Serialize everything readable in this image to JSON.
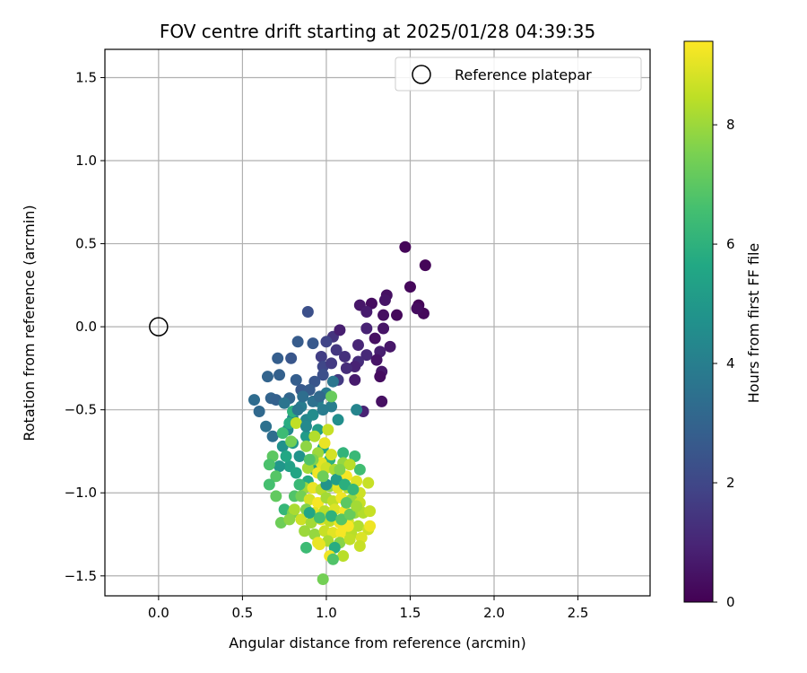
{
  "chart_data": {
    "type": "scatter",
    "title": "FOV centre drift starting at 2025/01/28 04:39:35",
    "xlabel": "Angular distance from reference (arcmin)",
    "ylabel": "Rotation from reference (arcmin)",
    "xlim": [
      -0.32,
      2.93
    ],
    "ylim": [
      -1.62,
      1.67
    ],
    "x_ticks": [
      0.0,
      0.5,
      1.0,
      1.5,
      2.0,
      2.5
    ],
    "x_tick_labels": [
      "0.0",
      "0.5",
      "1.0",
      "1.5",
      "2.0",
      "2.5"
    ],
    "y_ticks": [
      -1.5,
      -1.0,
      -0.5,
      0.0,
      0.5,
      1.0,
      1.5
    ],
    "y_tick_labels": [
      "−1.5",
      "−1.0",
      "−0.5",
      "0.0",
      "0.5",
      "1.0",
      "1.5"
    ],
    "grid": true,
    "legend": {
      "position": "top-right",
      "entries": [
        "Reference platepar"
      ]
    },
    "reference_point": {
      "x": 0.0,
      "y": 0.0
    },
    "colorbar": {
      "label": "Hours from first FF file",
      "colormap": "viridis",
      "range": [
        0,
        9.4
      ],
      "ticks": [
        0,
        2,
        4,
        6,
        8
      ],
      "tick_labels": [
        "0",
        "2",
        "4",
        "6",
        "8"
      ]
    },
    "points": [
      {
        "x": 1.47,
        "y": 0.48,
        "c": 0.1
      },
      {
        "x": 1.59,
        "y": 0.37,
        "c": 0.1
      },
      {
        "x": 1.5,
        "y": 0.24,
        "c": 0.2
      },
      {
        "x": 1.55,
        "y": 0.13,
        "c": 0.1
      },
      {
        "x": 1.58,
        "y": 0.08,
        "c": 0.2
      },
      {
        "x": 1.54,
        "y": 0.11,
        "c": 0.3
      },
      {
        "x": 1.36,
        "y": 0.19,
        "c": 0.4
      },
      {
        "x": 1.35,
        "y": 0.16,
        "c": 0.5
      },
      {
        "x": 1.27,
        "y": 0.14,
        "c": 0.3
      },
      {
        "x": 1.2,
        "y": 0.13,
        "c": 0.6
      },
      {
        "x": 1.42,
        "y": 0.07,
        "c": 0.2
      },
      {
        "x": 1.34,
        "y": 0.07,
        "c": 0.4
      },
      {
        "x": 1.24,
        "y": 0.09,
        "c": 0.7
      },
      {
        "x": 1.34,
        "y": -0.01,
        "c": 0.5
      },
      {
        "x": 1.24,
        "y": -0.01,
        "c": 0.9
      },
      {
        "x": 1.29,
        "y": -0.07,
        "c": 0.4
      },
      {
        "x": 1.38,
        "y": -0.12,
        "c": 0.6
      },
      {
        "x": 1.32,
        "y": -0.15,
        "c": 0.8
      },
      {
        "x": 1.19,
        "y": -0.11,
        "c": 1.0
      },
      {
        "x": 1.24,
        "y": -0.17,
        "c": 1.1
      },
      {
        "x": 1.19,
        "y": -0.21,
        "c": 1.2
      },
      {
        "x": 1.3,
        "y": -0.2,
        "c": 0.5
      },
      {
        "x": 1.33,
        "y": -0.27,
        "c": 0.6
      },
      {
        "x": 1.32,
        "y": -0.3,
        "c": 0.3
      },
      {
        "x": 1.17,
        "y": -0.24,
        "c": 0.9
      },
      {
        "x": 1.11,
        "y": -0.18,
        "c": 1.3
      },
      {
        "x": 1.06,
        "y": -0.14,
        "c": 1.5
      },
      {
        "x": 1.04,
        "y": -0.06,
        "c": 1.4
      },
      {
        "x": 1.08,
        "y": -0.02,
        "c": 0.8
      },
      {
        "x": 1.0,
        "y": -0.09,
        "c": 1.9
      },
      {
        "x": 0.97,
        "y": -0.18,
        "c": 1.7
      },
      {
        "x": 0.98,
        "y": -0.24,
        "c": 2.0
      },
      {
        "x": 1.03,
        "y": -0.22,
        "c": 1.6
      },
      {
        "x": 1.12,
        "y": -0.25,
        "c": 1.2
      },
      {
        "x": 1.17,
        "y": -0.32,
        "c": 0.7
      },
      {
        "x": 1.33,
        "y": -0.45,
        "c": 0.4
      },
      {
        "x": 1.22,
        "y": -0.51,
        "c": 0.9
      },
      {
        "x": 1.07,
        "y": -0.32,
        "c": 1.6
      },
      {
        "x": 0.98,
        "y": -0.29,
        "c": 2.3
      },
      {
        "x": 0.93,
        "y": -0.33,
        "c": 2.5
      },
      {
        "x": 0.89,
        "y": 0.09,
        "c": 2.3
      },
      {
        "x": 0.92,
        "y": -0.1,
        "c": 2.6
      },
      {
        "x": 0.83,
        "y": -0.09,
        "c": 2.7
      },
      {
        "x": 0.79,
        "y": -0.19,
        "c": 2.5
      },
      {
        "x": 0.71,
        "y": -0.19,
        "c": 2.8
      },
      {
        "x": 0.65,
        "y": -0.3,
        "c": 3.0
      },
      {
        "x": 0.72,
        "y": -0.29,
        "c": 2.9
      },
      {
        "x": 0.82,
        "y": -0.32,
        "c": 2.8
      },
      {
        "x": 0.85,
        "y": -0.38,
        "c": 2.6
      },
      {
        "x": 0.9,
        "y": -0.38,
        "c": 2.7
      },
      {
        "x": 0.78,
        "y": -0.43,
        "c": 3.1
      },
      {
        "x": 0.67,
        "y": -0.43,
        "c": 3.0
      },
      {
        "x": 0.7,
        "y": -0.44,
        "c": 2.9
      },
      {
        "x": 0.57,
        "y": -0.44,
        "c": 3.3
      },
      {
        "x": 0.6,
        "y": -0.51,
        "c": 3.2
      },
      {
        "x": 0.64,
        "y": -0.6,
        "c": 3.5
      },
      {
        "x": 0.68,
        "y": -0.66,
        "c": 3.4
      },
      {
        "x": 0.75,
        "y": -0.46,
        "c": 3.6
      },
      {
        "x": 0.8,
        "y": -0.55,
        "c": 4.2
      },
      {
        "x": 0.77,
        "y": -0.62,
        "c": 4.4
      },
      {
        "x": 0.85,
        "y": -0.48,
        "c": 3.9
      },
      {
        "x": 0.88,
        "y": -0.56,
        "c": 4.3
      },
      {
        "x": 0.92,
        "y": -0.53,
        "c": 4.5
      },
      {
        "x": 0.95,
        "y": -0.45,
        "c": 4.1
      },
      {
        "x": 1.0,
        "y": -0.4,
        "c": 3.8
      },
      {
        "x": 1.04,
        "y": -0.33,
        "c": 3.7
      },
      {
        "x": 1.03,
        "y": -0.48,
        "c": 4.0
      },
      {
        "x": 1.07,
        "y": -0.56,
        "c": 4.6
      },
      {
        "x": 0.74,
        "y": -0.72,
        "c": 4.7
      },
      {
        "x": 0.8,
        "y": -0.7,
        "c": 5.0
      },
      {
        "x": 0.84,
        "y": -0.78,
        "c": 4.8
      },
      {
        "x": 0.78,
        "y": -0.84,
        "c": 5.3
      },
      {
        "x": 0.72,
        "y": -0.84,
        "c": 4.9
      },
      {
        "x": 0.82,
        "y": -0.88,
        "c": 5.5
      },
      {
        "x": 0.89,
        "y": -0.93,
        "c": 5.7
      },
      {
        "x": 0.93,
        "y": -0.86,
        "c": 5.4
      },
      {
        "x": 0.88,
        "y": -0.66,
        "c": 5.1
      },
      {
        "x": 0.95,
        "y": -0.62,
        "c": 5.2
      },
      {
        "x": 0.98,
        "y": -0.73,
        "c": 5.6
      },
      {
        "x": 1.02,
        "y": -0.8,
        "c": 6.0
      },
      {
        "x": 1.18,
        "y": -0.5,
        "c": 4.2
      },
      {
        "x": 1.1,
        "y": -0.76,
        "c": 6.1
      },
      {
        "x": 1.17,
        "y": -0.78,
        "c": 6.3
      },
      {
        "x": 1.2,
        "y": -0.86,
        "c": 6.5
      },
      {
        "x": 0.8,
        "y": -0.51,
        "c": 6.0
      },
      {
        "x": 0.78,
        "y": -0.58,
        "c": 5.8
      },
      {
        "x": 0.74,
        "y": -0.64,
        "c": 6.4
      },
      {
        "x": 0.68,
        "y": -0.78,
        "c": 7.0
      },
      {
        "x": 0.66,
        "y": -0.83,
        "c": 6.7
      },
      {
        "x": 0.7,
        "y": -0.9,
        "c": 6.9
      },
      {
        "x": 0.66,
        "y": -0.95,
        "c": 6.6
      },
      {
        "x": 0.7,
        "y": -1.02,
        "c": 7.1
      },
      {
        "x": 0.75,
        "y": -1.1,
        "c": 6.2
      },
      {
        "x": 0.73,
        "y": -1.18,
        "c": 7.3
      },
      {
        "x": 0.8,
        "y": -1.12,
        "c": 7.5
      },
      {
        "x": 0.81,
        "y": -1.02,
        "c": 6.8
      },
      {
        "x": 0.79,
        "y": -0.69,
        "c": 7.4
      },
      {
        "x": 0.82,
        "y": -0.58,
        "c": 8.5
      },
      {
        "x": 0.88,
        "y": -0.72,
        "c": 7.8
      },
      {
        "x": 0.95,
        "y": -0.76,
        "c": 8.0
      },
      {
        "x": 0.93,
        "y": -0.66,
        "c": 8.3
      },
      {
        "x": 0.99,
        "y": -0.7,
        "c": 9.1
      },
      {
        "x": 1.01,
        "y": -0.62,
        "c": 8.6
      },
      {
        "x": 1.03,
        "y": -0.42,
        "c": 7.2
      },
      {
        "x": 1.03,
        "y": -0.77,
        "c": 8.8
      },
      {
        "x": 0.97,
        "y": -0.82,
        "c": 9.0
      },
      {
        "x": 0.92,
        "y": -0.8,
        "c": 7.6
      },
      {
        "x": 0.89,
        "y": -0.85,
        "c": 8.1
      },
      {
        "x": 0.95,
        "y": -0.88,
        "c": 9.2
      },
      {
        "x": 1.0,
        "y": -0.85,
        "c": 8.7
      },
      {
        "x": 1.05,
        "y": -0.86,
        "c": 8.2
      },
      {
        "x": 1.1,
        "y": -0.82,
        "c": 7.9
      },
      {
        "x": 1.14,
        "y": -0.83,
        "c": 8.4
      },
      {
        "x": 1.12,
        "y": -0.9,
        "c": 9.3
      },
      {
        "x": 1.18,
        "y": -0.93,
        "c": 8.9
      },
      {
        "x": 1.25,
        "y": -0.94,
        "c": 8.6
      },
      {
        "x": 0.87,
        "y": -0.97,
        "c": 8.0
      },
      {
        "x": 0.92,
        "y": -0.97,
        "c": 9.1
      },
      {
        "x": 0.97,
        "y": -0.98,
        "c": 8.4
      },
      {
        "x": 1.02,
        "y": -0.96,
        "c": 7.8
      },
      {
        "x": 1.07,
        "y": -0.97,
        "c": 9.0
      },
      {
        "x": 1.13,
        "y": -0.97,
        "c": 8.3
      },
      {
        "x": 1.2,
        "y": -1.0,
        "c": 8.7
      },
      {
        "x": 0.85,
        "y": -1.02,
        "c": 7.4
      },
      {
        "x": 0.9,
        "y": -1.04,
        "c": 8.8
      },
      {
        "x": 0.95,
        "y": -1.06,
        "c": 9.3
      },
      {
        "x": 1.0,
        "y": -1.03,
        "c": 8.1
      },
      {
        "x": 1.04,
        "y": -1.05,
        "c": 8.5
      },
      {
        "x": 1.09,
        "y": -1.03,
        "c": 9.2
      },
      {
        "x": 1.15,
        "y": -1.04,
        "c": 7.9
      },
      {
        "x": 1.2,
        "y": -1.06,
        "c": 8.6
      },
      {
        "x": 0.81,
        "y": -1.1,
        "c": 8.2
      },
      {
        "x": 0.88,
        "y": -1.1,
        "c": 7.6
      },
      {
        "x": 0.93,
        "y": -1.12,
        "c": 9.0
      },
      {
        "x": 0.99,
        "y": -1.11,
        "c": 8.4
      },
      {
        "x": 1.05,
        "y": -1.1,
        "c": 8.9
      },
      {
        "x": 1.11,
        "y": -1.11,
        "c": 9.3
      },
      {
        "x": 1.17,
        "y": -1.12,
        "c": 8.0
      },
      {
        "x": 1.22,
        "y": -1.12,
        "c": 8.3
      },
      {
        "x": 1.26,
        "y": -1.11,
        "c": 8.6
      },
      {
        "x": 0.78,
        "y": -1.16,
        "c": 7.8
      },
      {
        "x": 0.85,
        "y": -1.16,
        "c": 8.7
      },
      {
        "x": 0.91,
        "y": -1.18,
        "c": 8.1
      },
      {
        "x": 0.97,
        "y": -1.16,
        "c": 9.1
      },
      {
        "x": 1.02,
        "y": -1.17,
        "c": 8.5
      },
      {
        "x": 1.08,
        "y": -1.18,
        "c": 9.2
      },
      {
        "x": 1.13,
        "y": -1.17,
        "c": 8.8
      },
      {
        "x": 1.19,
        "y": -1.2,
        "c": 8.3
      },
      {
        "x": 1.25,
        "y": -1.22,
        "c": 8.7
      },
      {
        "x": 0.87,
        "y": -1.23,
        "c": 8.0
      },
      {
        "x": 0.93,
        "y": -1.25,
        "c": 7.9
      },
      {
        "x": 0.99,
        "y": -1.23,
        "c": 8.6
      },
      {
        "x": 1.04,
        "y": -1.24,
        "c": 9.0
      },
      {
        "x": 1.09,
        "y": -1.24,
        "c": 9.3
      },
      {
        "x": 1.15,
        "y": -1.25,
        "c": 8.4
      },
      {
        "x": 1.21,
        "y": -1.27,
        "c": 8.9
      },
      {
        "x": 1.26,
        "y": -1.2,
        "c": 9.2
      },
      {
        "x": 0.95,
        "y": -1.3,
        "c": 9.1
      },
      {
        "x": 1.01,
        "y": -1.29,
        "c": 8.2
      },
      {
        "x": 1.08,
        "y": -1.3,
        "c": 7.7
      },
      {
        "x": 1.14,
        "y": -1.28,
        "c": 8.5
      },
      {
        "x": 1.2,
        "y": -1.32,
        "c": 8.6
      },
      {
        "x": 0.88,
        "y": -1.33,
        "c": 6.4
      },
      {
        "x": 1.05,
        "y": -1.33,
        "c": 5.8
      },
      {
        "x": 1.02,
        "y": -1.38,
        "c": 9.2
      },
      {
        "x": 1.1,
        "y": -1.38,
        "c": 8.4
      },
      {
        "x": 1.04,
        "y": -1.4,
        "c": 6.8
      },
      {
        "x": 0.98,
        "y": -1.52,
        "c": 7.4
      },
      {
        "x": 0.96,
        "y": -1.31,
        "c": 9.1
      },
      {
        "x": 1.13,
        "y": -1.2,
        "c": 9.3
      },
      {
        "x": 1.0,
        "y": -0.95,
        "c": 4.8
      },
      {
        "x": 1.06,
        "y": -0.92,
        "c": 5.2
      },
      {
        "x": 1.11,
        "y": -0.95,
        "c": 5.9
      },
      {
        "x": 1.16,
        "y": -0.98,
        "c": 6.2
      },
      {
        "x": 0.9,
        "y": -1.12,
        "c": 5.5
      },
      {
        "x": 0.96,
        "y": -1.15,
        "c": 6.6
      },
      {
        "x": 1.03,
        "y": -1.14,
        "c": 6.0
      },
      {
        "x": 1.09,
        "y": -1.16,
        "c": 6.9
      },
      {
        "x": 1.14,
        "y": -1.13,
        "c": 7.2
      },
      {
        "x": 0.84,
        "y": -0.95,
        "c": 6.3
      },
      {
        "x": 0.88,
        "y": -0.6,
        "c": 4.4
      },
      {
        "x": 0.92,
        "y": -0.45,
        "c": 3.5
      },
      {
        "x": 0.96,
        "y": -0.42,
        "c": 3.2
      },
      {
        "x": 0.98,
        "y": -0.5,
        "c": 3.9
      },
      {
        "x": 0.86,
        "y": -0.42,
        "c": 3.4
      },
      {
        "x": 0.83,
        "y": -0.5,
        "c": 3.7
      },
      {
        "x": 0.76,
        "y": -0.78,
        "c": 5.6
      },
      {
        "x": 0.9,
        "y": -0.8,
        "c": 6.8
      },
      {
        "x": 0.98,
        "y": -0.9,
        "c": 7.3
      },
      {
        "x": 1.08,
        "y": -0.86,
        "c": 7.6
      },
      {
        "x": 1.12,
        "y": -1.06,
        "c": 7.0
      },
      {
        "x": 1.18,
        "y": -1.08,
        "c": 8.1
      }
    ]
  }
}
